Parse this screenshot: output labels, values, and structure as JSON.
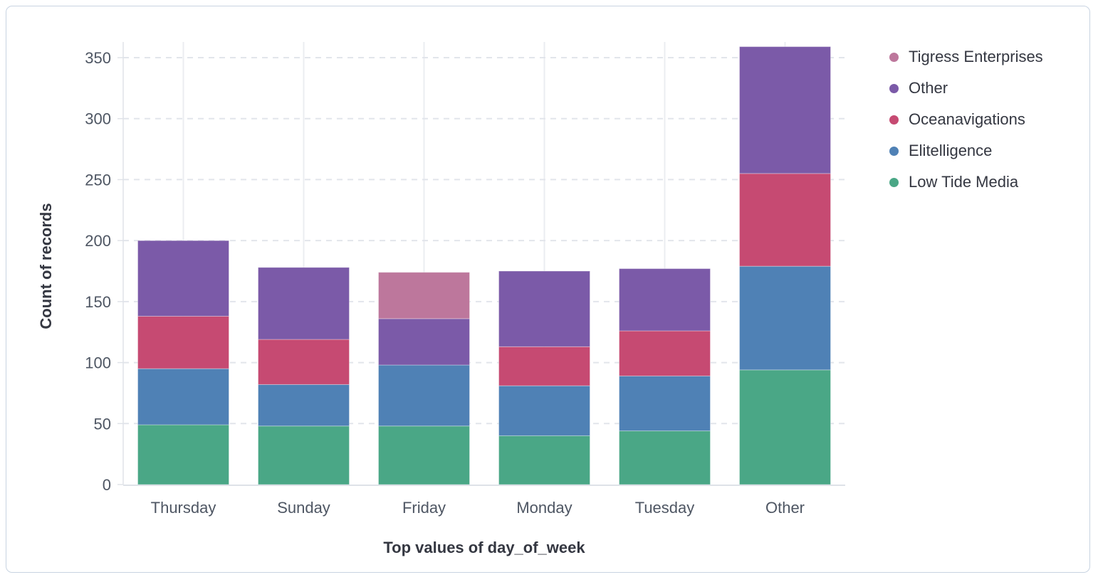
{
  "chart_data": {
    "type": "bar",
    "stacked": true,
    "xlabel": "Top values of day_of_week",
    "ylabel": "Count of records",
    "categories": [
      "Thursday",
      "Sunday",
      "Friday",
      "Monday",
      "Tuesday",
      "Other"
    ],
    "series": [
      {
        "name": "Low Tide Media",
        "color": "#4AA786",
        "values": [
          49,
          48,
          48,
          40,
          44,
          94
        ]
      },
      {
        "name": "Elitelligence",
        "color": "#4F81B5",
        "values": [
          46,
          34,
          50,
          41,
          45,
          85
        ]
      },
      {
        "name": "Oceanavigations",
        "color": "#C64A72",
        "values": [
          43,
          37,
          0,
          32,
          37,
          76
        ]
      },
      {
        "name": "Other",
        "color": "#7B5AA8",
        "values": [
          62,
          59,
          38,
          62,
          51,
          104
        ]
      },
      {
        "name": "Tigress Enterprises",
        "color": "#BD779C",
        "values": [
          0,
          0,
          38,
          0,
          0,
          0
        ]
      }
    ],
    "totals": [
      200,
      178,
      174,
      175,
      177,
      359
    ],
    "y_ticks": [
      0,
      50,
      100,
      150,
      200,
      250,
      300,
      350
    ],
    "ylim": [
      0,
      350
    ],
    "grid": {
      "horizontal": "dashed",
      "vertical": "solid"
    },
    "legend_position": "right",
    "legend_order": [
      "Tigress Enterprises",
      "Other",
      "Oceanavigations",
      "Elitelligence",
      "Low Tide Media"
    ]
  },
  "colors": {
    "card_border": "#c8d3e1",
    "grid_dashed": "#e2e5eb",
    "grid_vertical": "#ebedf1",
    "axis_line": "#e0e3e9",
    "baseline": "#dee2e8",
    "tick_text": "#4e5663",
    "title_text": "#343741"
  }
}
